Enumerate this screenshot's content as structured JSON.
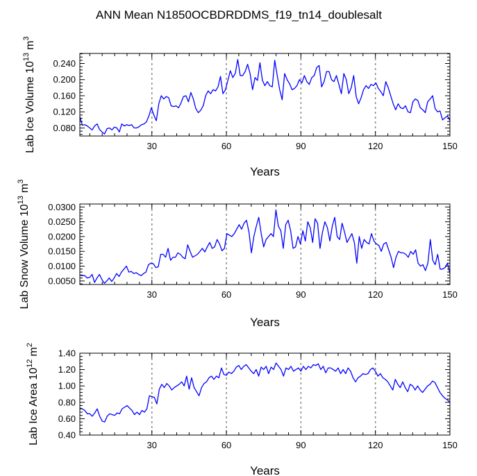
{
  "title": "ANN Mean N1850OCBDRDDMS_f19_tn14_doublesalt",
  "colors": {
    "line": "#0000ff",
    "axis": "#000000",
    "refline": "#888888",
    "background": "#ffffff"
  },
  "chart_data": [
    {
      "type": "line",
      "panel": "ice-volume",
      "xlabel": "Years",
      "ylabel": "Lab Ice Volume 10",
      "ylabel_exp": "13",
      "ylabel_unit": "m",
      "ylabel_unit_exp": "3",
      "xlim": [
        1,
        150
      ],
      "ylim": [
        0.06,
        0.265
      ],
      "xticks": [
        30,
        60,
        90,
        120,
        150
      ],
      "xtick_labels": [
        "30",
        "60",
        "90",
        "120",
        "150"
      ],
      "yticks": [
        0.08,
        0.12,
        0.16,
        0.2,
        0.24
      ],
      "ytick_labels": [
        "0.080",
        "0.120",
        "0.160",
        "0.200",
        "0.240"
      ],
      "ref_lines_x": [
        30,
        60,
        90,
        120
      ],
      "series": [
        {
          "values": [
            0.108,
            0.087,
            0.088,
            0.085,
            0.08,
            0.075,
            0.085,
            0.09,
            0.076,
            0.07,
            0.065,
            0.078,
            0.08,
            0.075,
            0.082,
            0.08,
            0.07,
            0.09,
            0.085,
            0.088,
            0.086,
            0.088,
            0.08,
            0.08,
            0.083,
            0.088,
            0.09,
            0.095,
            0.11,
            0.13,
            0.112,
            0.098,
            0.14,
            0.16,
            0.152,
            0.158,
            0.155,
            0.135,
            0.133,
            0.135,
            0.13,
            0.142,
            0.158,
            0.16,
            0.145,
            0.168,
            0.152,
            0.128,
            0.118,
            0.124,
            0.135,
            0.16,
            0.172,
            0.165,
            0.175,
            0.172,
            0.182,
            0.208,
            0.165,
            0.175,
            0.198,
            0.222,
            0.205,
            0.215,
            0.25,
            0.21,
            0.21,
            0.22,
            0.238,
            0.215,
            0.175,
            0.205,
            0.198,
            0.242,
            0.198,
            0.185,
            0.195,
            0.185,
            0.182,
            0.248,
            0.21,
            0.175,
            0.15,
            0.215,
            0.2,
            0.19,
            0.175,
            0.178,
            0.185,
            0.2,
            0.192,
            0.21,
            0.195,
            0.188,
            0.205,
            0.21,
            0.23,
            0.235,
            0.182,
            0.195,
            0.22,
            0.22,
            0.2,
            0.195,
            0.21,
            0.188,
            0.165,
            0.215,
            0.2,
            0.165,
            0.18,
            0.21,
            0.158,
            0.14,
            0.155,
            0.175,
            0.185,
            0.178,
            0.188,
            0.185,
            0.192,
            0.178,
            0.17,
            0.16,
            0.195,
            0.18,
            0.16,
            0.14,
            0.125,
            0.14,
            0.13,
            0.128,
            0.135,
            0.12,
            0.118,
            0.145,
            0.152,
            0.148,
            0.13,
            0.125,
            0.118,
            0.145,
            0.152,
            0.16,
            0.128,
            0.12,
            0.122,
            0.1,
            0.105,
            0.11,
            0.098
          ]
        }
      ]
    },
    {
      "type": "line",
      "panel": "snow-volume",
      "xlabel": "Years",
      "ylabel": "Lab Snow Volume 10",
      "ylabel_exp": "13",
      "ylabel_unit": "m",
      "ylabel_unit_exp": "3",
      "xlim": [
        1,
        150
      ],
      "ylim": [
        0.0038,
        0.031
      ],
      "xticks": [
        30,
        60,
        90,
        120,
        150
      ],
      "xtick_labels": [
        "30",
        "60",
        "90",
        "120",
        "150"
      ],
      "yticks": [
        0.005,
        0.01,
        0.015,
        0.02,
        0.025,
        0.03
      ],
      "ytick_labels": [
        "0.0050",
        "0.0100",
        "0.0150",
        "0.0200",
        "0.0250",
        "0.0300"
      ],
      "ref_lines_x": [
        30,
        60,
        90,
        120
      ],
      "series": [
        {
          "values": [
            0.007,
            0.0068,
            0.0068,
            0.006,
            0.0062,
            0.0072,
            0.0045,
            0.006,
            0.0072,
            0.0055,
            0.0042,
            0.005,
            0.006,
            0.0048,
            0.006,
            0.0075,
            0.0065,
            0.008,
            0.009,
            0.01,
            0.008,
            0.0082,
            0.0075,
            0.0078,
            0.0072,
            0.0068,
            0.0075,
            0.008,
            0.0105,
            0.011,
            0.0108,
            0.0095,
            0.0098,
            0.014,
            0.014,
            0.013,
            0.016,
            0.012,
            0.013,
            0.013,
            0.0145,
            0.014,
            0.013,
            0.0125,
            0.0172,
            0.015,
            0.013,
            0.0135,
            0.014,
            0.015,
            0.016,
            0.0148,
            0.0165,
            0.018,
            0.016,
            0.0165,
            0.019,
            0.0175,
            0.0152,
            0.016,
            0.021,
            0.0205,
            0.02,
            0.021,
            0.0225,
            0.024,
            0.0225,
            0.0245,
            0.0255,
            0.0215,
            0.0145,
            0.02,
            0.0235,
            0.0265,
            0.021,
            0.0165,
            0.019,
            0.02,
            0.021,
            0.02,
            0.029,
            0.0235,
            0.022,
            0.016,
            0.024,
            0.0255,
            0.022,
            0.016,
            0.0165,
            0.02,
            0.0175,
            0.022,
            0.0185,
            0.025,
            0.023,
            0.018,
            0.026,
            0.0245,
            0.016,
            0.0215,
            0.025,
            0.023,
            0.0185,
            0.0235,
            0.0265,
            0.02,
            0.019,
            0.0245,
            0.0215,
            0.018,
            0.0195,
            0.021,
            0.018,
            0.011,
            0.02,
            0.016,
            0.019,
            0.018,
            0.0175,
            0.021,
            0.0185,
            0.0175,
            0.017,
            0.015,
            0.0175,
            0.018,
            0.0155,
            0.013,
            0.0095,
            0.013,
            0.015,
            0.0145,
            0.0145,
            0.014,
            0.013,
            0.015,
            0.014,
            0.0155,
            0.011,
            0.01,
            0.0105,
            0.0085,
            0.011,
            0.019,
            0.012,
            0.0105,
            0.014,
            0.009,
            0.009,
            0.0095,
            0.011,
            0.0075
          ]
        }
      ]
    },
    {
      "type": "line",
      "panel": "ice-area",
      "xlabel": "Years",
      "ylabel": "Lab Ice Area 10",
      "ylabel_exp": "12",
      "ylabel_unit": "m",
      "ylabel_unit_exp": "2",
      "xlim": [
        1,
        150
      ],
      "ylim": [
        0.4,
        1.4
      ],
      "xticks": [
        30,
        60,
        90,
        120,
        150
      ],
      "xtick_labels": [
        "30",
        "60",
        "90",
        "120",
        "150"
      ],
      "yticks": [
        0.4,
        0.6,
        0.8,
        1.0,
        1.2,
        1.4
      ],
      "ytick_labels": [
        "0.40",
        "0.60",
        "0.80",
        "1.00",
        "1.20",
        "1.40"
      ],
      "ref_lines_x": [
        30,
        60,
        90,
        120
      ],
      "series": [
        {
          "values": [
            0.73,
            0.72,
            0.7,
            0.66,
            0.66,
            0.63,
            0.67,
            0.72,
            0.63,
            0.57,
            0.56,
            0.63,
            0.66,
            0.65,
            0.64,
            0.67,
            0.66,
            0.72,
            0.74,
            0.76,
            0.73,
            0.7,
            0.65,
            0.68,
            0.65,
            0.7,
            0.68,
            0.72,
            0.88,
            0.87,
            0.86,
            0.78,
            0.96,
            1.02,
            0.98,
            1.03,
            1.0,
            0.95,
            0.98,
            1.0,
            1.02,
            1.05,
            1.0,
            1.12,
            0.96,
            1.1,
            0.98,
            0.93,
            0.88,
            0.98,
            1.03,
            1.05,
            1.1,
            1.12,
            1.08,
            1.12,
            1.1,
            1.22,
            1.14,
            1.13,
            1.17,
            1.15,
            1.18,
            1.23,
            1.25,
            1.2,
            1.24,
            1.26,
            1.22,
            1.18,
            1.15,
            1.2,
            1.12,
            1.23,
            1.2,
            1.24,
            1.15,
            1.23,
            1.2,
            1.28,
            1.24,
            1.2,
            1.12,
            1.22,
            1.2,
            1.24,
            1.18,
            1.2,
            1.22,
            1.18,
            1.24,
            1.2,
            1.24,
            1.22,
            1.26,
            1.25,
            1.27,
            1.2,
            1.24,
            1.16,
            1.22,
            1.22,
            1.2,
            1.18,
            1.22,
            1.15,
            1.2,
            1.15,
            1.22,
            1.18,
            1.1,
            1.05,
            1.1,
            1.12,
            1.15,
            1.14,
            1.15,
            1.2,
            1.22,
            1.18,
            1.12,
            1.15,
            1.1,
            1.08,
            1.05,
            1.0,
            0.95,
            1.08,
            1.02,
            0.98,
            1.05,
            0.98,
            0.93,
            1.02,
            1.0,
            0.95,
            1.0,
            0.95,
            0.92,
            0.96,
            1.0,
            1.02,
            1.06,
            1.04,
            0.98,
            0.92,
            0.88,
            0.85,
            0.83,
            0.8
          ]
        }
      ]
    }
  ]
}
